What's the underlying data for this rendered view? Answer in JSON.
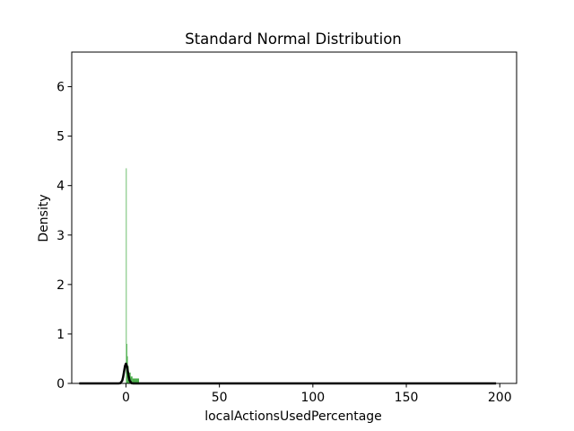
{
  "chart_data": {
    "type": "histogram",
    "title": "Standard Normal Distribution",
    "xlabel": "localActionsUsedPercentage",
    "ylabel": "Density",
    "xlim": [
      -29,
      209
    ],
    "ylim": [
      0,
      6.7
    ],
    "x_ticks": [
      0,
      50,
      100,
      150,
      200
    ],
    "x_tick_labels": [
      "0",
      "50",
      "100",
      "150",
      "200"
    ],
    "y_ticks": [
      0,
      1,
      2,
      3,
      4,
      5,
      6
    ],
    "y_tick_labels": [
      "0",
      "1",
      "2",
      "3",
      "4",
      "5",
      "6"
    ],
    "grid": false,
    "legend": "none",
    "histogram": {
      "color": "#2ca02c",
      "bins": [
        {
          "x0": 0.0,
          "x1": 0.3,
          "density": 4.35
        },
        {
          "x0": 0.3,
          "x1": 0.6,
          "density": 0.8
        },
        {
          "x0": 0.6,
          "x1": 1.0,
          "density": 0.55
        },
        {
          "x0": 1.0,
          "x1": 1.5,
          "density": 0.35
        },
        {
          "x0": 1.5,
          "x1": 2.5,
          "density": 0.22
        },
        {
          "x0": 2.5,
          "x1": 3.5,
          "density": 0.14
        },
        {
          "x0": 3.5,
          "x1": 7.0,
          "density": 0.1
        },
        {
          "x0": 7.0,
          "x1": 50.0,
          "density": 0.008
        },
        {
          "x0": 50.0,
          "x1": 198.0,
          "density": 0.003
        }
      ]
    },
    "curve": {
      "type": "line",
      "color": "#000000",
      "x": [
        -25,
        -10,
        -4,
        -3,
        -2,
        -1.5,
        -1,
        -0.5,
        0,
        0.5,
        1,
        1.5,
        2,
        3,
        4,
        10,
        50,
        100,
        150,
        198
      ],
      "y": [
        0,
        0,
        0.0001,
        0.0044,
        0.054,
        0.13,
        0.242,
        0.352,
        0.399,
        0.352,
        0.242,
        0.13,
        0.054,
        0.0044,
        0.0001,
        0,
        0,
        0,
        0,
        0
      ]
    }
  }
}
